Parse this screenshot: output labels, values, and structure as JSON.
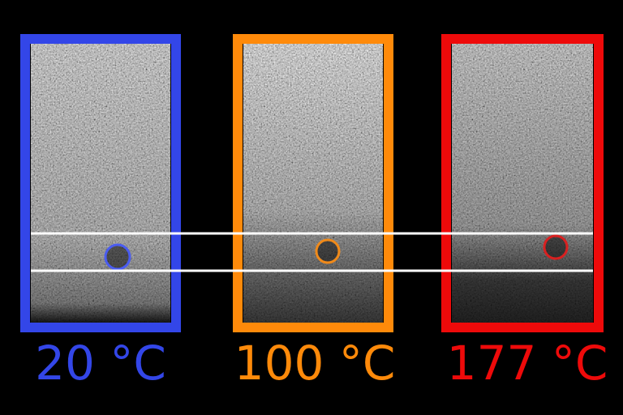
{
  "panels": [
    {
      "label": "20 °C"
    },
    {
      "label": "100 °C"
    },
    {
      "label": "177 °C"
    }
  ]
}
